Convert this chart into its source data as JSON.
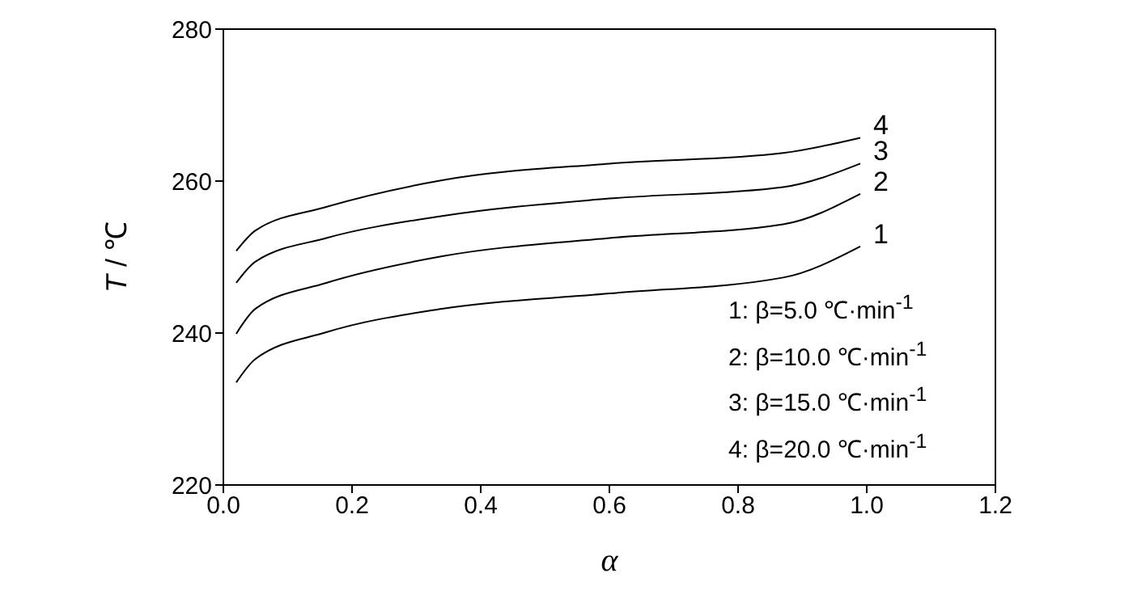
{
  "chart_data": {
    "type": "line",
    "xlabel": "α",
    "ylabel": "T / ℃",
    "xlim": [
      0,
      1.2
    ],
    "xticks": [
      {
        "value": 0,
        "label": "0.0"
      },
      {
        "value": 0.2,
        "label": "0.2"
      },
      {
        "value": 0.4,
        "label": "0.4"
      },
      {
        "value": 0.6,
        "label": "0.6"
      },
      {
        "value": 0.8,
        "label": "0.8"
      },
      {
        "value": 1,
        "label": "1.0"
      },
      {
        "value": 1.2,
        "label": "1.2"
      }
    ],
    "ylim": [
      220,
      280
    ],
    "yticks": [
      220,
      240,
      260,
      280
    ],
    "grid": false,
    "legend": false,
    "marker": "none",
    "line_style": "solid",
    "x": [
      0.02,
      0.05,
      0.16,
      0.34,
      0.6,
      0.87,
      0.99
    ],
    "series": [
      {
        "name": "1",
        "color": "#000000",
        "values": [
          233.5,
          236.6,
          240.1,
          243.2,
          245.2,
          247.3,
          251.4
        ]
      },
      {
        "name": "2",
        "color": "#000000",
        "values": [
          239.9,
          243.2,
          246.6,
          250.1,
          252.5,
          254.3,
          258.3
        ]
      },
      {
        "name": "3",
        "color": "#000000",
        "values": [
          246.6,
          249.4,
          252.5,
          255.4,
          257.7,
          259.2,
          262.3
        ]
      },
      {
        "name": "4",
        "color": "#000000",
        "values": [
          250.8,
          253.5,
          256.6,
          260.1,
          262.3,
          263.7,
          265.7
        ]
      }
    ],
    "annotations": [
      "1:  β=5.0 ℃·min$^{-1}$",
      "2:  β=10.0 ℃·min$^{-1}$",
      "3:  β=15.0 ℃·min$^{-1}$",
      "4:  β=20.0 ℃·min$^{-1}$"
    ]
  }
}
